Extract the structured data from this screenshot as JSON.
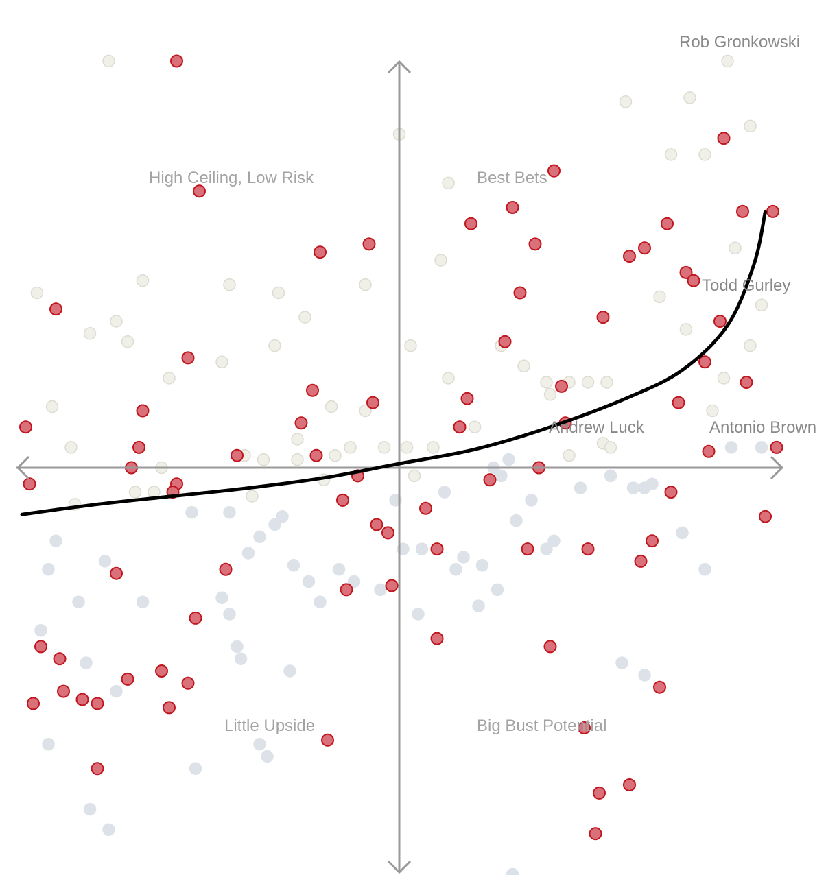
{
  "colors": {
    "highlight_fill": "#d9707a",
    "highlight_stroke": "#c0161e",
    "upper_fill": "#f0f0e8",
    "upper_stroke": "#dcdcd2",
    "lower_fill": "#dde1e8",
    "lower_stroke": "#dde1e8",
    "axis": "#999999",
    "curve": "#000000"
  },
  "chart_data": {
    "type": "scatter",
    "xlim": [
      -10,
      10
    ],
    "ylim": [
      -10,
      10
    ],
    "grid": false,
    "quadrant_labels": [
      {
        "key": "top-left",
        "text": "High Ceiling, Low Risk"
      },
      {
        "key": "top-right",
        "text": "Best Bets"
      },
      {
        "key": "bottom-left",
        "text": "Little Upside"
      },
      {
        "key": "bottom-right",
        "text": "Big Bust Potential"
      }
    ],
    "annotations": [
      {
        "text": "Rob Gronkowski",
        "x": 9.1,
        "y": 10.0
      },
      {
        "text": "Todd Gurley",
        "x": 9.6,
        "y": 4.4
      },
      {
        "text": "Andrew Luck",
        "x": 5.7,
        "y": 0.5
      },
      {
        "text": "Antonio Brown",
        "x": 10.0,
        "y": 0.5
      }
    ],
    "highlighted": [
      [
        -5.9,
        10.0
      ],
      [
        -5.3,
        6.8
      ],
      [
        -9.1,
        3.9
      ],
      [
        -5.6,
        2.7
      ],
      [
        -6.8,
        1.4
      ],
      [
        -6.9,
        0.5
      ],
      [
        -7.1,
        0.0
      ],
      [
        -9.9,
        1.0
      ],
      [
        -9.8,
        -0.4
      ],
      [
        -5.9,
        -0.4
      ],
      [
        -6.0,
        -0.6
      ],
      [
        -4.3,
        0.3
      ],
      [
        -2.1,
        5.3
      ],
      [
        -0.8,
        5.5
      ],
      [
        -2.3,
        1.9
      ],
      [
        -2.6,
        1.1
      ],
      [
        -2.2,
        0.3
      ],
      [
        -0.7,
        1.6
      ],
      [
        -1.1,
        -0.2
      ],
      [
        -1.5,
        -0.8
      ],
      [
        -0.6,
        -1.4
      ],
      [
        -0.3,
        -1.6
      ],
      [
        -0.2,
        -2.9
      ],
      [
        -1.4,
        -3.0
      ],
      [
        -4.6,
        -2.5
      ],
      [
        -7.5,
        -2.6
      ],
      [
        -5.4,
        -3.7
      ],
      [
        -9.5,
        -4.4
      ],
      [
        -9.0,
        -4.7
      ],
      [
        -8.9,
        -5.5
      ],
      [
        -8.4,
        -5.7
      ],
      [
        -7.2,
        -5.2
      ],
      [
        -6.3,
        -5.0
      ],
      [
        -5.6,
        -5.3
      ],
      [
        -6.1,
        -5.9
      ],
      [
        -9.7,
        -5.8
      ],
      [
        -8.0,
        -5.8
      ],
      [
        -8.0,
        -7.4
      ],
      [
        -1.9,
        -6.7
      ],
      [
        1.0,
        -2.0
      ],
      [
        0.7,
        -1.0
      ],
      [
        1.0,
        -4.2
      ],
      [
        2.4,
        -0.3
      ],
      [
        3.7,
        0.0
      ],
      [
        4.3,
        2.0
      ],
      [
        1.6,
        1.0
      ],
      [
        1.8,
        1.7
      ],
      [
        2.8,
        3.1
      ],
      [
        3.2,
        4.3
      ],
      [
        3.6,
        5.5
      ],
      [
        1.9,
        6.0
      ],
      [
        4.1,
        7.3
      ],
      [
        5.4,
        3.7
      ],
      [
        6.1,
        5.2
      ],
      [
        6.5,
        5.4
      ],
      [
        7.1,
        6.0
      ],
      [
        7.6,
        4.8
      ],
      [
        7.8,
        4.6
      ],
      [
        8.5,
        3.6
      ],
      [
        8.1,
        2.6
      ],
      [
        7.4,
        1.6
      ],
      [
        8.2,
        0.4
      ],
      [
        9.1,
        6.3
      ],
      [
        8.6,
        8.1
      ],
      [
        9.9,
        6.3
      ],
      [
        9.2,
        2.1
      ],
      [
        6.7,
        -1.8
      ],
      [
        5.0,
        -2.0
      ],
      [
        7.2,
        -0.6
      ],
      [
        9.7,
        -1.2
      ],
      [
        6.4,
        -2.3
      ],
      [
        3.4,
        -2.0
      ],
      [
        4.0,
        -4.4
      ],
      [
        6.9,
        -5.4
      ],
      [
        5.3,
        -8.0
      ],
      [
        6.1,
        -7.8
      ],
      [
        4.9,
        -6.4
      ],
      [
        5.2,
        -9.0
      ],
      [
        10.0,
        0.5
      ],
      [
        4.4,
        1.1
      ],
      [
        3.0,
        6.4
      ]
    ],
    "upper": [
      [
        -7.7,
        10.0
      ],
      [
        -6.8,
        4.6
      ],
      [
        -4.5,
        4.5
      ],
      [
        -3.2,
        4.3
      ],
      [
        -2.5,
        3.7
      ],
      [
        -0.9,
        4.5
      ],
      [
        0.0,
        8.2
      ],
      [
        -9.6,
        4.3
      ],
      [
        -8.2,
        3.3
      ],
      [
        -7.2,
        3.1
      ],
      [
        -6.1,
        2.2
      ],
      [
        -4.7,
        2.6
      ],
      [
        -3.3,
        3.0
      ],
      [
        -9.2,
        1.5
      ],
      [
        -8.7,
        0.5
      ],
      [
        -6.3,
        0.0
      ],
      [
        -7.0,
        -0.6
      ],
      [
        -6.5,
        -0.6
      ],
      [
        -8.6,
        -0.9
      ],
      [
        -4.1,
        0.3
      ],
      [
        -3.6,
        0.2
      ],
      [
        -2.7,
        0.7
      ],
      [
        -2.7,
        0.2
      ],
      [
        -1.7,
        0.3
      ],
      [
        -1.3,
        0.5
      ],
      [
        -0.9,
        1.4
      ],
      [
        -0.4,
        0.5
      ],
      [
        0.2,
        0.5
      ],
      [
        0.4,
        -0.2
      ],
      [
        0.9,
        0.5
      ],
      [
        -1.8,
        1.5
      ],
      [
        -2.0,
        -0.3
      ],
      [
        -3.9,
        -0.7
      ],
      [
        0.3,
        3.0
      ],
      [
        1.1,
        5.1
      ],
      [
        1.3,
        7.0
      ],
      [
        1.3,
        2.2
      ],
      [
        2.0,
        1.0
      ],
      [
        2.7,
        3.0
      ],
      [
        3.3,
        2.5
      ],
      [
        3.9,
        2.1
      ],
      [
        4.5,
        2.1
      ],
      [
        4.0,
        1.8
      ],
      [
        5.0,
        2.1
      ],
      [
        5.5,
        2.1
      ],
      [
        4.5,
        0.3
      ],
      [
        5.4,
        0.6
      ],
      [
        5.6,
        0.5
      ],
      [
        6.9,
        4.2
      ],
      [
        6.0,
        9.0
      ],
      [
        7.2,
        7.7
      ],
      [
        8.1,
        7.7
      ],
      [
        8.7,
        10.0
      ],
      [
        7.7,
        9.1
      ],
      [
        9.3,
        8.4
      ],
      [
        8.9,
        5.4
      ],
      [
        7.6,
        3.4
      ],
      [
        8.3,
        1.4
      ],
      [
        8.6,
        2.2
      ],
      [
        9.3,
        3.0
      ],
      [
        9.6,
        4.0
      ],
      [
        -7.5,
        3.6
      ]
    ],
    "lower": [
      [
        -5.5,
        -1.1
      ],
      [
        -4.5,
        -1.1
      ],
      [
        -4.0,
        -2.1
      ],
      [
        -3.7,
        -1.7
      ],
      [
        -3.3,
        -1.4
      ],
      [
        -3.1,
        -1.2
      ],
      [
        -2.8,
        -2.4
      ],
      [
        -2.4,
        -2.8
      ],
      [
        -2.1,
        -3.3
      ],
      [
        -1.6,
        -2.5
      ],
      [
        -1.2,
        -2.8
      ],
      [
        -0.5,
        -3.0
      ],
      [
        0.1,
        -2.0
      ],
      [
        0.6,
        -2.0
      ],
      [
        1.2,
        -0.6
      ],
      [
        -0.1,
        -0.8
      ],
      [
        1.7,
        -2.2
      ],
      [
        1.5,
        -2.5
      ],
      [
        2.2,
        -2.4
      ],
      [
        2.6,
        -3.0
      ],
      [
        2.1,
        -3.4
      ],
      [
        0.5,
        -3.6
      ],
      [
        3.1,
        -1.3
      ],
      [
        3.5,
        -0.8
      ],
      [
        3.9,
        -2.0
      ],
      [
        4.1,
        -1.8
      ],
      [
        4.8,
        -0.5
      ],
      [
        5.6,
        -0.2
      ],
      [
        2.7,
        -0.2
      ],
      [
        2.5,
        0.0
      ],
      [
        2.9,
        0.2
      ],
      [
        6.5,
        -0.5
      ],
      [
        6.2,
        -0.5
      ],
      [
        6.7,
        -0.4
      ],
      [
        7.5,
        -1.6
      ],
      [
        8.1,
        -2.5
      ],
      [
        5.9,
        -4.8
      ],
      [
        6.5,
        -5.1
      ],
      [
        8.8,
        0.5
      ],
      [
        9.6,
        0.5
      ],
      [
        -9.5,
        -4.0
      ],
      [
        -9.1,
        -1.8
      ],
      [
        -9.3,
        -2.5
      ],
      [
        -8.5,
        -3.3
      ],
      [
        -7.8,
        -2.3
      ],
      [
        -6.8,
        -3.3
      ],
      [
        -8.3,
        -4.8
      ],
      [
        -7.5,
        -5.5
      ],
      [
        -4.7,
        -3.2
      ],
      [
        -4.5,
        -3.6
      ],
      [
        -4.3,
        -4.4
      ],
      [
        -4.2,
        -4.7
      ],
      [
        -2.9,
        -5.0
      ],
      [
        -9.3,
        -6.8
      ],
      [
        -5.4,
        -7.4
      ],
      [
        -3.7,
        -6.8
      ],
      [
        -3.5,
        -7.1
      ],
      [
        -8.2,
        -8.4
      ],
      [
        -7.7,
        -8.9
      ],
      [
        3.0,
        -10.0
      ]
    ],
    "curve_points": [
      [
        -10.0,
        -1.15
      ],
      [
        -8.0,
        -0.9
      ],
      [
        -6.0,
        -0.7
      ],
      [
        -4.0,
        -0.5
      ],
      [
        -2.0,
        -0.25
      ],
      [
        0.0,
        0.1
      ],
      [
        2.0,
        0.45
      ],
      [
        4.0,
        1.0
      ],
      [
        6.0,
        1.7
      ],
      [
        7.5,
        2.4
      ],
      [
        8.7,
        3.5
      ],
      [
        9.4,
        5.0
      ],
      [
        9.7,
        6.3
      ]
    ]
  }
}
